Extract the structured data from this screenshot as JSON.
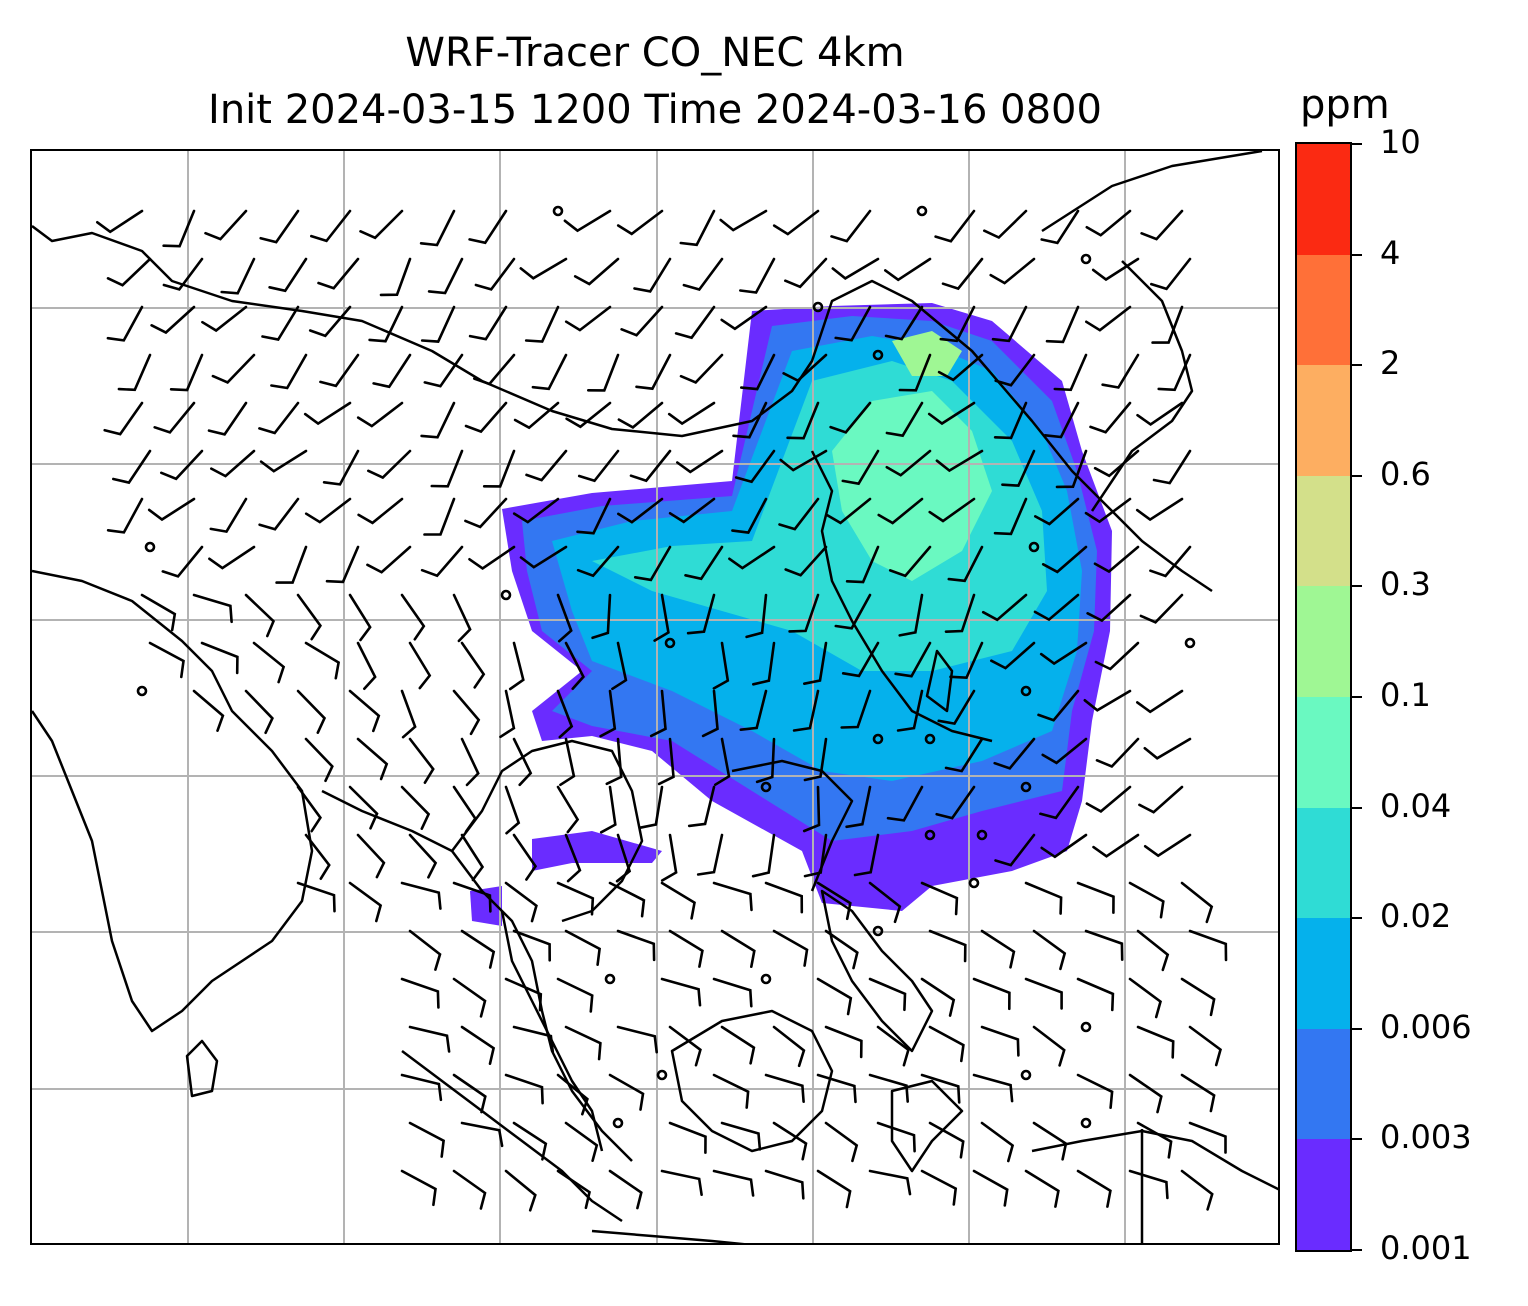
{
  "title_line1": "WRF-Tracer CO_NEC 4km",
  "title_line2": "Init 2024-03-15 1200 Time 2024-03-16 0800",
  "colorbar": {
    "units": "ppm",
    "tick_labels": [
      "0.001",
      "0.003",
      "0.006",
      "0.02",
      "0.04",
      "0.1",
      "0.3",
      "0.6",
      "2",
      "4",
      "10"
    ],
    "colors": [
      "#6a2cff",
      "#3377f2",
      "#05b1ec",
      "#2fdcd5",
      "#6af9c1",
      "#9ff794",
      "#d3e08a",
      "#fdae61",
      "#ff7038",
      "#fb2a12"
    ]
  },
  "map": {
    "features": [
      "coastlines",
      "country-borders",
      "lat-lon-gridlines",
      "wind-barbs",
      "tracer-concentration-fill"
    ],
    "fill_levels_shown": [
      "0.001",
      "0.003",
      "0.006",
      "0.02",
      "0.04",
      "0.1"
    ],
    "gridline_color": "#b3b3b3"
  }
}
